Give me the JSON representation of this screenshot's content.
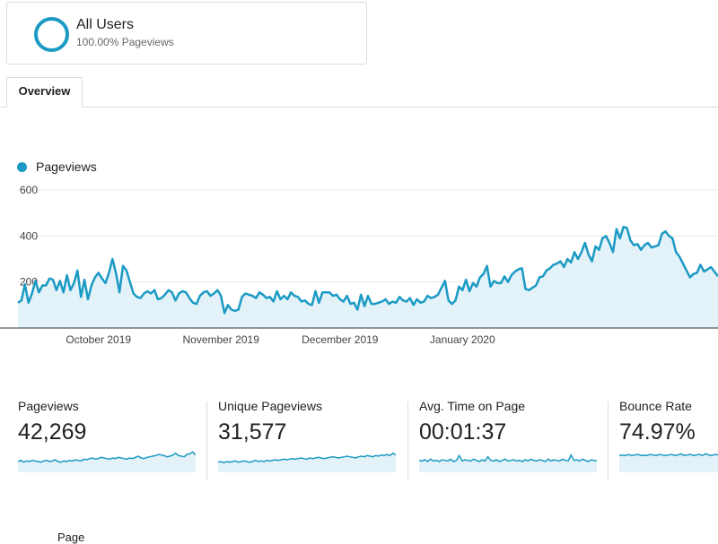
{
  "segment": {
    "name": "All Users",
    "subtitle": "100.00% Pageviews",
    "color": "#1b9ac4"
  },
  "tabs": [
    {
      "label": "Overview"
    }
  ],
  "legend": {
    "label": "Pageviews",
    "color": "#1b9ac4"
  },
  "chart_data": {
    "type": "area",
    "title": "",
    "series": [
      {
        "name": "Pageviews",
        "values": [
          110,
          120,
          190,
          110,
          150,
          205,
          155,
          185,
          185,
          215,
          210,
          165,
          205,
          155,
          230,
          165,
          195,
          250,
          135,
          210,
          125,
          185,
          220,
          240,
          215,
          195,
          240,
          300,
          240,
          155,
          270,
          250,
          200,
          150,
          135,
          130,
          150,
          160,
          150,
          165,
          125,
          130,
          145,
          165,
          155,
          120,
          150,
          160,
          155,
          130,
          110,
          105,
          140,
          155,
          160,
          140,
          150,
          165,
          140,
          65,
          100,
          80,
          75,
          80,
          135,
          150,
          145,
          140,
          130,
          155,
          145,
          130,
          135,
          115,
          160,
          125,
          140,
          125,
          155,
          140,
          135,
          115,
          120,
          105,
          100,
          160,
          110,
          155,
          155,
          155,
          140,
          145,
          125,
          115,
          140,
          105,
          110,
          80,
          145,
          95,
          140,
          105,
          105,
          110,
          115,
          125,
          105,
          115,
          110,
          135,
          120,
          115,
          130,
          100,
          125,
          110,
          115,
          140,
          130,
          135,
          145,
          175,
          205,
          120,
          105,
          120,
          180,
          165,
          210,
          160,
          195,
          180,
          220,
          235,
          270,
          180,
          205,
          195,
          195,
          225,
          200,
          230,
          245,
          255,
          260,
          170,
          165,
          175,
          185,
          220,
          225,
          250,
          260,
          275,
          280,
          290,
          265,
          300,
          285,
          330,
          300,
          330,
          370,
          320,
          290,
          355,
          340,
          390,
          400,
          370,
          330,
          430,
          390,
          440,
          435,
          380,
          360,
          365,
          340,
          360,
          370,
          350,
          355,
          360,
          410,
          420,
          400,
          390,
          330,
          310,
          280,
          250,
          220,
          235,
          240,
          275,
          245,
          255,
          265,
          245,
          225
        ]
      }
    ],
    "ylim": [
      0,
      600
    ],
    "yticks": [
      200,
      400,
      600
    ],
    "xtick_labels": [
      "October 2019",
      "November 2019",
      "December 2019",
      "January 2020"
    ],
    "grid": true,
    "legend": "top-left"
  },
  "metrics": [
    {
      "label": "Pageviews",
      "value": "42,269",
      "spark": [
        12,
        14,
        11,
        13,
        12,
        14,
        13,
        12,
        11,
        13,
        14,
        12,
        13,
        15,
        12,
        11,
        13,
        12,
        14,
        13,
        15,
        14,
        13,
        16,
        15,
        17,
        18,
        16,
        17,
        19,
        18,
        17,
        16,
        18,
        17,
        19,
        18,
        17,
        16,
        18,
        17,
        19,
        21,
        18,
        17,
        19,
        20,
        21,
        22,
        24,
        23,
        22,
        20,
        21,
        23,
        26,
        22,
        21,
        20,
        24,
        25,
        28,
        23
      ]
    },
    {
      "label": "Unique Pageviews",
      "value": "31,577",
      "spark": [
        11,
        12,
        10,
        12,
        11,
        12,
        13,
        11,
        12,
        13,
        12,
        11,
        12,
        14,
        12,
        13,
        12,
        14,
        13,
        14,
        15,
        14,
        15,
        16,
        15,
        16,
        17,
        16,
        17,
        18,
        17,
        16,
        18,
        17,
        18,
        19,
        18,
        17,
        18,
        19,
        20,
        19,
        18,
        19,
        20,
        21,
        20,
        19,
        18,
        20,
        21,
        20,
        22,
        21,
        20,
        22,
        21,
        23,
        22,
        24,
        22,
        26,
        23
      ]
    },
    {
      "label": "Avg. Time on Page",
      "value": "00:01:37",
      "spark": [
        14,
        13,
        15,
        12,
        16,
        13,
        14,
        12,
        15,
        14,
        13,
        16,
        12,
        14,
        22,
        13,
        15,
        14,
        13,
        16,
        14,
        12,
        15,
        13,
        20,
        14,
        13,
        15,
        12,
        14,
        16,
        13,
        14,
        15,
        13,
        14,
        12,
        15,
        13,
        16,
        14,
        13,
        15,
        14,
        12,
        16,
        13,
        15,
        14,
        13,
        16,
        14,
        13,
        23,
        14,
        15,
        13,
        16,
        14,
        12,
        15,
        14,
        13
      ]
    },
    {
      "label": "Bounce Rate",
      "value": "74.97%",
      "spark": [
        22,
        23,
        22,
        24,
        22,
        23,
        24,
        22,
        23,
        22,
        24,
        23,
        22,
        24,
        23,
        22,
        23,
        24,
        22,
        23,
        25,
        22,
        23,
        24,
        22,
        23,
        24,
        22,
        25,
        23,
        22,
        24,
        23
      ]
    }
  ],
  "footer": {
    "label": "Page"
  }
}
